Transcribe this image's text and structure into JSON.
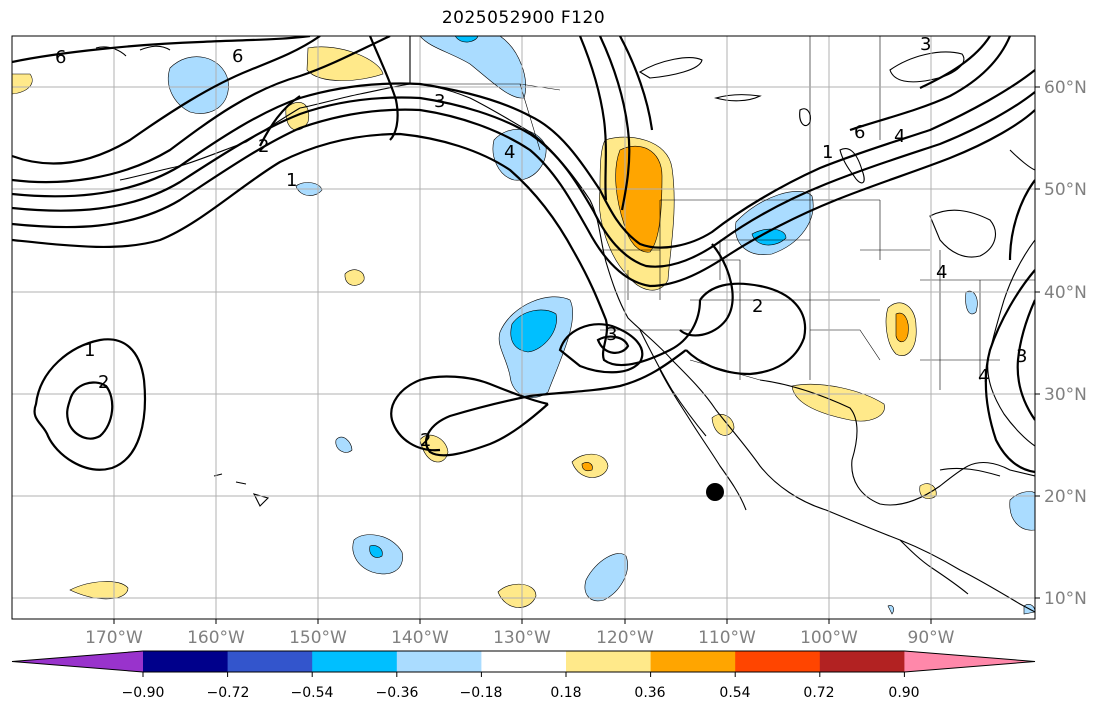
{
  "title": "2025052900 F120",
  "longitude_labels": [
    "170°W",
    "160°W",
    "150°W",
    "140°W",
    "130°W",
    "120°W",
    "110°W",
    "100°W",
    "90°W"
  ],
  "latitude_labels": [
    "60°N",
    "50°N",
    "40°N",
    "30°N",
    "20°N",
    "10°N"
  ],
  "colorbar": {
    "tick_labels": [
      "−0.90",
      "−0.72",
      "−0.54",
      "−0.36",
      "−0.18",
      "0.18",
      "0.36",
      "0.54",
      "0.72",
      "0.90"
    ],
    "colors": [
      "#9933cc",
      "#00008b",
      "#3355cc",
      "#00bfff",
      "#aadcff",
      "#ffffff",
      "#ffe98a",
      "#ffa500",
      "#ff4500",
      "#b22222",
      "#ff88aa"
    ]
  },
  "contour_labels": [
    "6",
    "6",
    "2",
    "1",
    "3",
    "2",
    "3",
    "4",
    "6",
    "4",
    "4",
    "2",
    "3",
    "1",
    "2",
    "3",
    "1",
    "4"
  ],
  "map": {
    "lon_range": [
      -180,
      -80
    ],
    "lat_range": [
      8,
      65
    ],
    "marker": "black-dot"
  }
}
